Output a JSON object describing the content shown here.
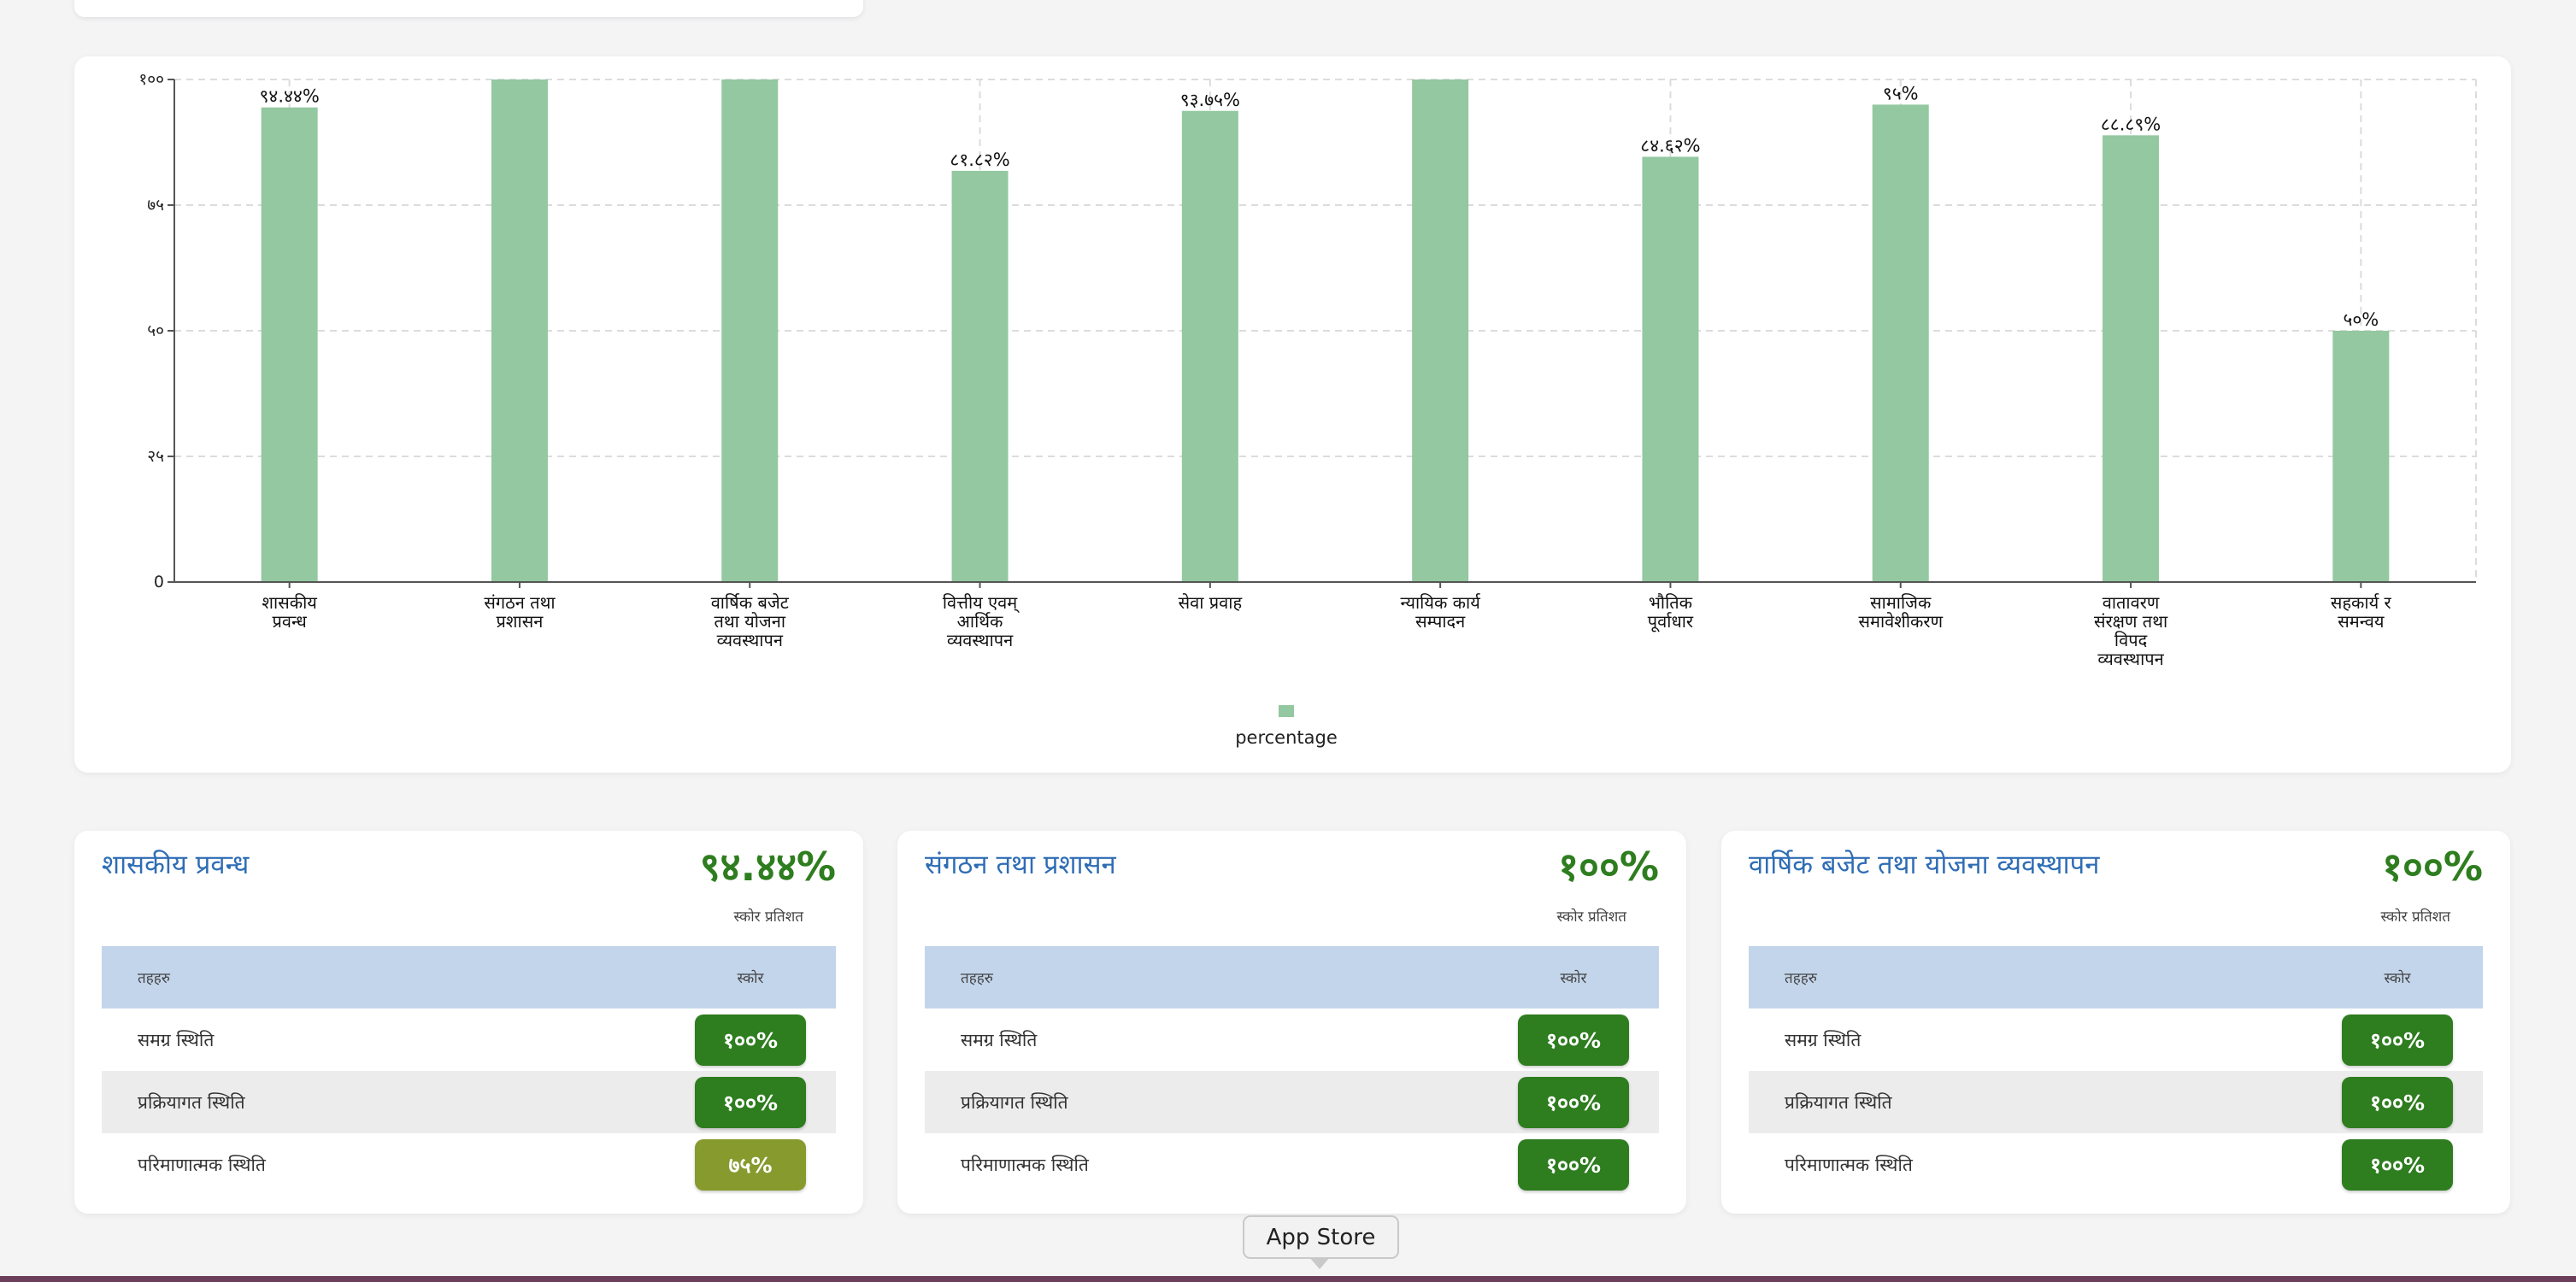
{
  "chart_data": {
    "type": "bar",
    "categories": [
      [
        "शासकीय",
        "प्रवन्ध"
      ],
      [
        "संगठन तथा",
        "प्रशासन"
      ],
      [
        "वार्षिक बजेट",
        "तथा योजना",
        "व्यवस्थापन"
      ],
      [
        "वित्तीय एवम्",
        "आर्थिक",
        "व्यवस्थापन"
      ],
      [
        "सेवा प्रवाह"
      ],
      [
        "न्यायिक कार्य",
        "सम्पादन"
      ],
      [
        "भौतिक",
        "पूर्वाधार"
      ],
      [
        "सामाजिक",
        "समावेशीकरण"
      ],
      [
        "वातावरण",
        "संरक्षण तथा",
        "विपद",
        "व्यवस्थापन"
      ],
      [
        "सहकार्य र",
        "समन्वय"
      ]
    ],
    "series": [
      {
        "name": "percentage",
        "values": [
          94.44,
          100,
          100,
          81.82,
          93.75,
          100,
          84.62,
          95,
          88.89,
          50
        ],
        "labels": [
          "९४.४४%",
          "",
          "",
          "८१.८२%",
          "९३.७५%",
          "",
          "८४.६२%",
          "९५%",
          "८८.८९%",
          "५०%"
        ]
      }
    ],
    "yticks": [
      "0",
      "२५",
      "५०",
      "७५",
      "१००"
    ],
    "ylim": [
      0,
      100
    ],
    "grid": true,
    "legend": "bottom-center",
    "colors": {
      "bar": "#93c8a0"
    }
  },
  "cards": [
    {
      "title": "शासकीय प्रवन्ध",
      "score": "९४.४४%",
      "score_label": "स्कोर प्रतिशत",
      "header": [
        "तहहरु",
        "स्कोर"
      ],
      "rows": [
        {
          "label": "समग्र स्थिति",
          "value": "१००%",
          "status": "green"
        },
        {
          "label": "प्रक्रियागत स्थिति",
          "value": "१००%",
          "status": "green"
        },
        {
          "label": "परिमाणात्मक स्थिति",
          "value": "७५%",
          "status": "olive"
        }
      ]
    },
    {
      "title": "संगठन तथा प्रशासन",
      "score": "१००%",
      "score_label": "स्कोर प्रतिशत",
      "header": [
        "तहहरु",
        "स्कोर"
      ],
      "rows": [
        {
          "label": "समग्र स्थिति",
          "value": "१००%",
          "status": "green"
        },
        {
          "label": "प्रक्रियागत स्थिति",
          "value": "१००%",
          "status": "green"
        },
        {
          "label": "परिमाणात्मक स्थिति",
          "value": "१००%",
          "status": "green"
        }
      ]
    },
    {
      "title": "वार्षिक बजेट तथा योजना व्यवस्थापन",
      "score": "१००%",
      "score_label": "स्कोर प्रतिशत",
      "header": [
        "तहहरु",
        "स्कोर"
      ],
      "rows": [
        {
          "label": "समग्र स्थिति",
          "value": "१००%",
          "status": "green"
        },
        {
          "label": "प्रक्रियागत स्थिति",
          "value": "१००%",
          "status": "green"
        },
        {
          "label": "परिमाणात्मक स्थिति",
          "value": "१००%",
          "status": "green"
        }
      ]
    }
  ],
  "tooltip": {
    "label": "App Store"
  },
  "colors": {
    "green": "#2e7d1f",
    "olive": "#879a2e",
    "title_blue": "#2f6db5",
    "table_header": "#c3d5eb"
  }
}
